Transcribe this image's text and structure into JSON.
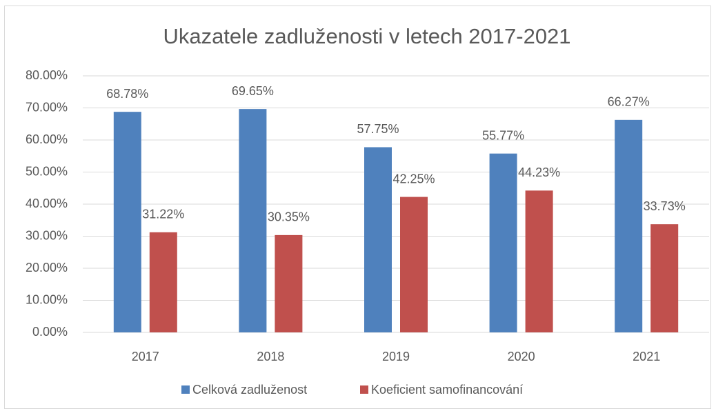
{
  "chart_data": {
    "type": "bar",
    "title": "Ukazatele zadluženosti v letech 2017-2021",
    "categories": [
      "2017",
      "2018",
      "2019",
      "2020",
      "2021"
    ],
    "series": [
      {
        "name": "Celková zadluženost",
        "color": "#4f81bd",
        "values": [
          68.78,
          69.65,
          57.75,
          55.77,
          66.27
        ],
        "value_labels": [
          "68.78%",
          "69.65%",
          "57.75%",
          "55.77%",
          "66.27%"
        ]
      },
      {
        "name": "Koeficient samofinancování",
        "color": "#c0504d",
        "values": [
          31.22,
          30.35,
          42.25,
          44.23,
          33.73
        ],
        "value_labels": [
          "31.22%",
          "30.35%",
          "42.25%",
          "44.23%",
          "33.73%"
        ]
      }
    ],
    "ylim": [
      0,
      80
    ],
    "yticks": [
      {
        "value": 0,
        "label": "0.00%"
      },
      {
        "value": 10,
        "label": "10.00%"
      },
      {
        "value": 20,
        "label": "20.00%"
      },
      {
        "value": 30,
        "label": "30.00%"
      },
      {
        "value": 40,
        "label": "40.00%"
      },
      {
        "value": 50,
        "label": "50.00%"
      },
      {
        "value": 60,
        "label": "60.00%"
      },
      {
        "value": 70,
        "label": "70.00%"
      },
      {
        "value": 80,
        "label": "80.00%"
      }
    ],
    "grid": true,
    "legend": "bottom"
  }
}
